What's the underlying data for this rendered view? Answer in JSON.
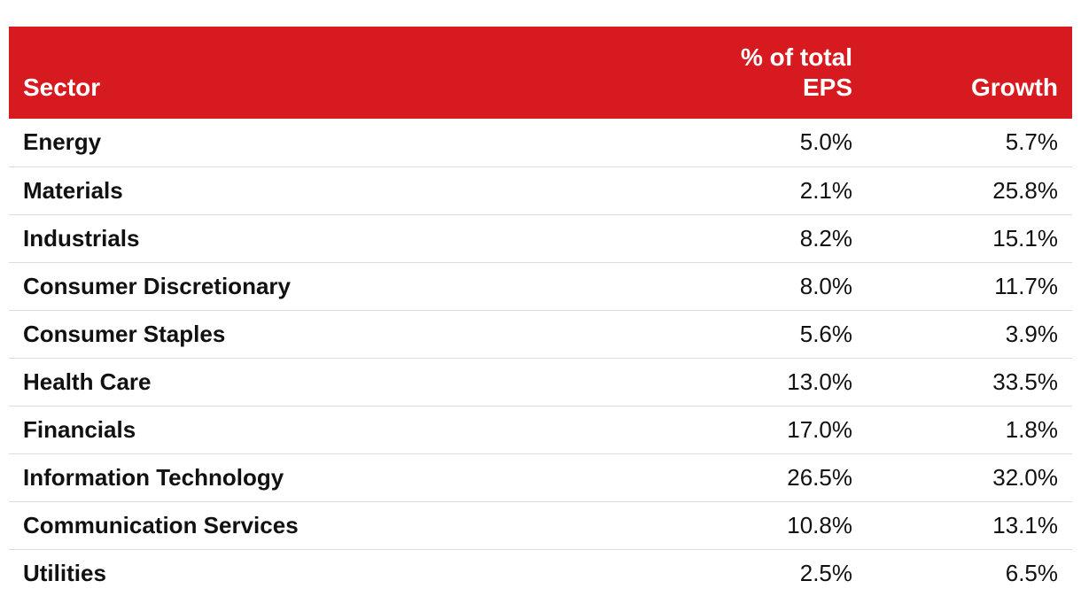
{
  "chart_data": {
    "type": "table",
    "columns": [
      "Sector",
      "% of total EPS",
      "Growth"
    ],
    "header_lines": {
      "sector": "Sector",
      "eps_line1": "% of total",
      "eps_line2": "EPS",
      "growth": "Growth"
    },
    "rows": [
      {
        "sector": "Energy",
        "eps": "5.0%",
        "growth": "5.7%"
      },
      {
        "sector": "Materials",
        "eps": "2.1%",
        "growth": "25.8%"
      },
      {
        "sector": "Industrials",
        "eps": "8.2%",
        "growth": "15.1%"
      },
      {
        "sector": "Consumer Discretionary",
        "eps": "8.0%",
        "growth": "11.7%"
      },
      {
        "sector": "Consumer Staples",
        "eps": "5.6%",
        "growth": "3.9%"
      },
      {
        "sector": "Health Care",
        "eps": "13.0%",
        "growth": "33.5%"
      },
      {
        "sector": "Financials",
        "eps": "17.0%",
        "growth": "1.8%"
      },
      {
        "sector": "Information Technology",
        "eps": "26.5%",
        "growth": "32.0%"
      },
      {
        "sector": "Communication Services",
        "eps": "10.8%",
        "growth": "13.1%"
      },
      {
        "sector": "Utilities",
        "eps": "2.5%",
        "growth": "6.5%"
      }
    ],
    "colors": {
      "header_background": "#d71920",
      "header_text": "#ffffff",
      "row_divider": "#dddddd"
    }
  }
}
